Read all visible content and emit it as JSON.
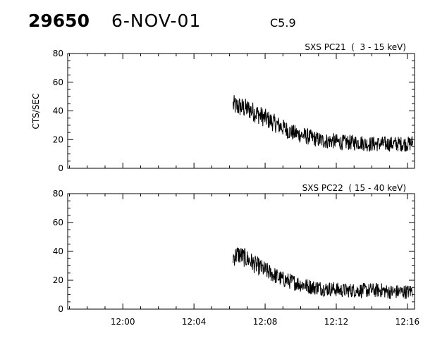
{
  "header": {
    "event_id": "29650",
    "date": "6-NOV-01",
    "flare_class": "C5.9"
  },
  "chart_data": [
    {
      "type": "line",
      "title": "SXS PC21  (  3 - 15 keV)",
      "ylabel": "CTS/SEC",
      "xlabel": "",
      "ylim": [
        0,
        80
      ],
      "yticks": [
        "0",
        "20",
        "40",
        "60",
        "80"
      ],
      "xlim_minutes": [
        716.9,
        736.4
      ],
      "xticks": [
        {
          "label": "12:00",
          "minute": 720
        },
        {
          "label": "12:04",
          "minute": 724
        },
        {
          "label": "12:08",
          "minute": 728
        },
        {
          "label": "12:12",
          "minute": 732
        },
        {
          "label": "12:16",
          "minute": 736
        }
      ],
      "series": [
        {
          "x": [
            726.2,
            726.5,
            726.8,
            727.1,
            727.4,
            727.7,
            728.0,
            728.3,
            728.6,
            728.9,
            729.2,
            729.5,
            729.8,
            730.1,
            730.4,
            730.7,
            731.0,
            731.3,
            731.6,
            731.9,
            732.2,
            732.5,
            732.8,
            733.1,
            733.4,
            733.7,
            734.0,
            734.3,
            734.6,
            734.9,
            735.2,
            735.5,
            735.8,
            736.1,
            736.3
          ],
          "y": [
            44,
            43,
            42,
            41,
            39,
            37,
            35,
            33,
            31,
            29,
            27,
            25,
            24,
            23,
            22,
            21,
            20,
            19,
            19,
            19,
            18,
            18,
            18,
            18,
            18,
            17,
            17,
            17,
            17,
            17,
            17,
            17,
            17,
            17,
            18
          ],
          "noise": 5
        }
      ]
    },
    {
      "type": "line",
      "title": "SXS PC22  ( 15 - 40 keV)",
      "ylabel": "",
      "xlabel": "",
      "ylim": [
        0,
        80
      ],
      "yticks": [
        "0",
        "20",
        "40",
        "60",
        "80"
      ],
      "xlim_minutes": [
        716.9,
        736.4
      ],
      "xticks": [
        {
          "label": "12:00",
          "minute": 720
        },
        {
          "label": "12:04",
          "minute": 724
        },
        {
          "label": "12:08",
          "minute": 728
        },
        {
          "label": "12:12",
          "minute": 732
        },
        {
          "label": "12:16",
          "minute": 736
        }
      ],
      "series": [
        {
          "x": [
            726.2,
            726.5,
            726.8,
            727.1,
            727.4,
            727.7,
            728.0,
            728.3,
            728.6,
            728.9,
            729.2,
            729.5,
            729.8,
            730.1,
            730.4,
            730.7,
            731.0,
            731.3,
            731.6,
            731.9,
            732.2,
            732.5,
            732.8,
            733.1,
            733.4,
            733.7,
            734.0,
            734.3,
            734.6,
            734.9,
            735.2,
            735.5,
            735.8,
            736.1,
            736.3
          ],
          "y": [
            36,
            38,
            36,
            34,
            31,
            29,
            27,
            25,
            23,
            21,
            20,
            19,
            18,
            17,
            16,
            15,
            15,
            14,
            14,
            14,
            13,
            13,
            13,
            13,
            13,
            13,
            13,
            13,
            13,
            12,
            12,
            12,
            12,
            12,
            13
          ],
          "noise": 5
        }
      ]
    }
  ]
}
